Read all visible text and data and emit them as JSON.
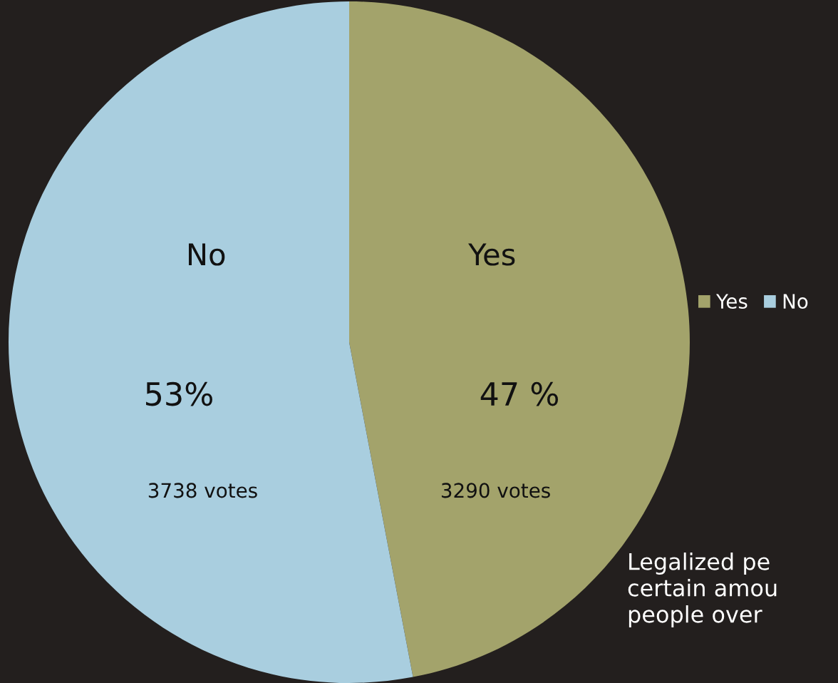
{
  "chart_data": {
    "type": "pie",
    "categories": [
      "Yes",
      "No"
    ],
    "values": [
      47,
      53
    ],
    "colors": [
      "#a3a36b",
      "#a9cedf"
    ],
    "value_labels": [
      "47 %\n3290 votes",
      "53%\n3738 votes"
    ],
    "legend": "right",
    "annotations": [
      "Legalized pe\ncertain amou\npeople over"
    ]
  }
}
